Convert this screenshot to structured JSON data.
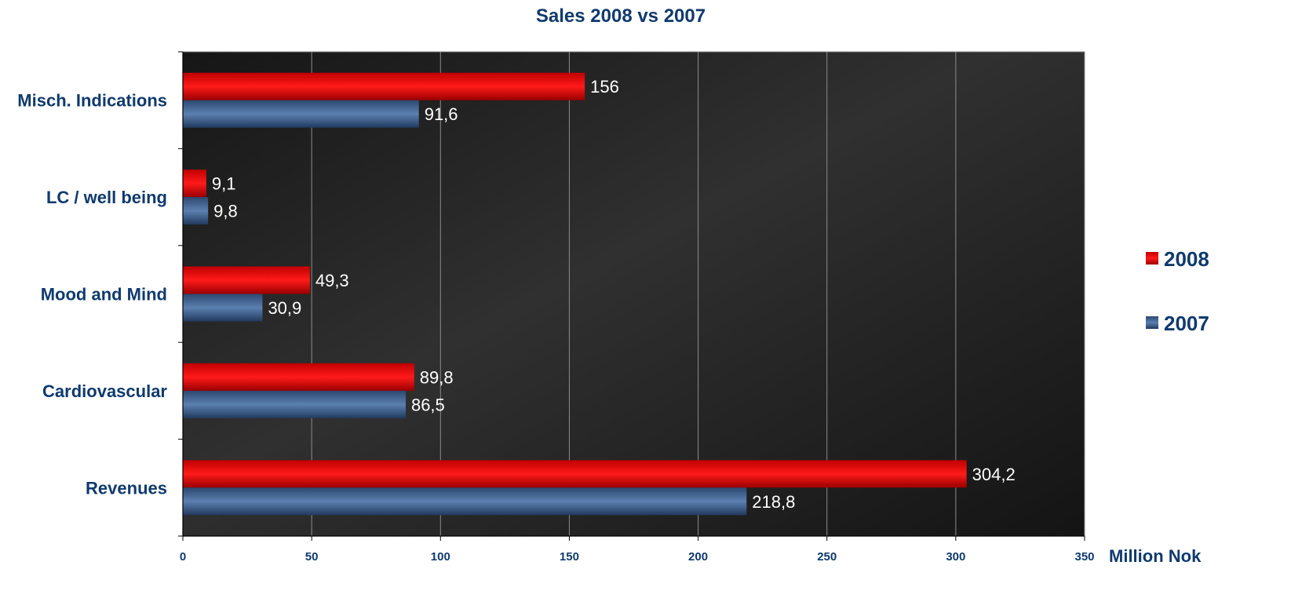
{
  "chart_data": {
    "type": "bar",
    "orientation": "horizontal",
    "title": "Sales 2008 vs 2007",
    "xlabel": "Million Nok",
    "ylabel": "",
    "xlim": [
      0,
      350
    ],
    "x_ticks": [
      "0",
      "50",
      "100",
      "150",
      "200",
      "250",
      "300",
      "350"
    ],
    "x_tick_values": [
      0,
      50,
      100,
      150,
      200,
      250,
      300,
      350
    ],
    "categories": [
      "Misch. Indications",
      "LC / well being",
      "Mood and Mind",
      "Cardiovascular",
      "Revenues"
    ],
    "series": [
      {
        "name": "2008",
        "color": "#e00000",
        "values": [
          156,
          9.1,
          49.3,
          89.8,
          304.2
        ],
        "labels": [
          "156",
          "9,1",
          "49,3",
          "89,8",
          "304,2"
        ]
      },
      {
        "name": "2007",
        "color": "#3a5b8c",
        "values": [
          91.6,
          9.8,
          30.9,
          86.5,
          218.8
        ],
        "labels": [
          "91,6",
          "9,8",
          "30,9",
          "86,5",
          "218,8"
        ]
      }
    ],
    "grid": true,
    "legend_position": "right",
    "text_color": "#0f3a6e",
    "background": "dark gradient"
  }
}
